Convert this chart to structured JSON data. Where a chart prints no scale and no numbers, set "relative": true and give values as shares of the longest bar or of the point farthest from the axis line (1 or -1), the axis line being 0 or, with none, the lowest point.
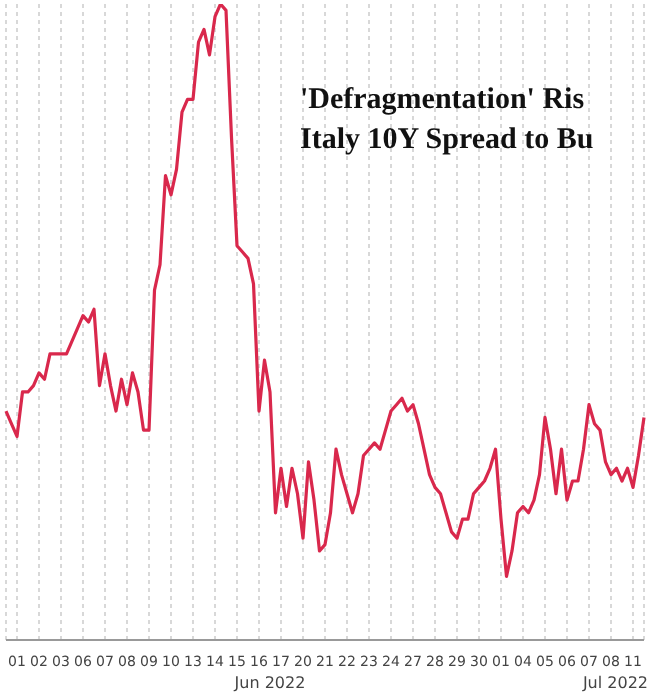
{
  "chart_data": {
    "type": "line",
    "title": "'Defragmentation' Ris",
    "subtitle": "Italy 10Y Spread to Bu",
    "relative": true,
    "grid": "x",
    "annotations": [
      "Jun 2022",
      "Jul 2022"
    ],
    "categories": [
      null,
      null,
      "01",
      null,
      null,
      null,
      "02",
      null,
      null,
      null,
      "03",
      null,
      null,
      null,
      "06",
      null,
      null,
      null,
      "07",
      null,
      null,
      null,
      "08",
      null,
      null,
      null,
      "09",
      null,
      null,
      null,
      "10",
      null,
      null,
      null,
      "13",
      null,
      null,
      null,
      "14",
      null,
      null,
      null,
      "15",
      null,
      null,
      null,
      "16",
      null,
      null,
      null,
      "17",
      null,
      null,
      null,
      "20",
      null,
      null,
      null,
      "21",
      null,
      null,
      null,
      "22",
      null,
      null,
      null,
      "23",
      null,
      null,
      null,
      "24",
      null,
      null,
      null,
      "27",
      null,
      null,
      null,
      "28",
      null,
      null,
      null,
      "29",
      null,
      null,
      null,
      "30",
      null,
      null,
      null,
      "01",
      null,
      null,
      null,
      "04",
      null,
      null,
      null,
      "05",
      null,
      null,
      null,
      "06",
      null,
      null,
      null,
      "07",
      null,
      null,
      null,
      "08",
      null,
      null,
      null,
      "11",
      null,
      null
    ],
    "series": [
      {
        "color": "#d9284c",
        "values": [
          0.36,
          0.34,
          0.32,
          0.39,
          0.39,
          0.4,
          0.42,
          0.41,
          0.45,
          0.45,
          0.45,
          0.45,
          0.47,
          0.49,
          0.51,
          0.5,
          0.52,
          0.4,
          0.45,
          0.4,
          0.36,
          0.41,
          0.37,
          0.42,
          0.39,
          0.33,
          0.33,
          0.55,
          0.59,
          0.73,
          0.7,
          0.74,
          0.83,
          0.85,
          0.85,
          0.94,
          0.96,
          0.92,
          0.98,
          1.0,
          0.99,
          0.79,
          0.62,
          0.61,
          0.6,
          0.56,
          0.36,
          0.44,
          0.39,
          0.2,
          0.27,
          0.21,
          0.27,
          0.23,
          0.16,
          0.28,
          0.22,
          0.14,
          0.15,
          0.2,
          0.3,
          0.26,
          0.23,
          0.2,
          0.23,
          0.29,
          0.3,
          0.31,
          0.3,
          0.33,
          0.36,
          0.37,
          0.38,
          0.36,
          0.37,
          0.34,
          0.3,
          0.26,
          0.24,
          0.23,
          0.2,
          0.17,
          0.16,
          0.19,
          0.19,
          0.23,
          0.24,
          0.25,
          0.27,
          0.3,
          0.19,
          0.1,
          0.14,
          0.2,
          0.21,
          0.2,
          0.22,
          0.26,
          0.35,
          0.3,
          0.23,
          0.3,
          0.22,
          0.25,
          0.25,
          0.3,
          0.37,
          0.34,
          0.33,
          0.28,
          0.26,
          0.27,
          0.25,
          0.27,
          0.24,
          0.29,
          0.35
        ]
      }
    ]
  }
}
